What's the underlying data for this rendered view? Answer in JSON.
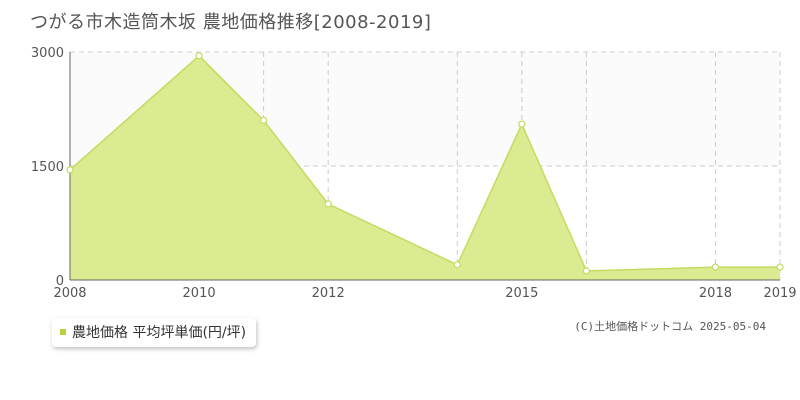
{
  "header": {
    "title": "つがる市木造筒木坂 農地価格推移[2008-2019]"
  },
  "chart_data": {
    "type": "area",
    "title": "つがる市木造筒木坂 農地価格推移[2008-2019]",
    "x": [
      2008,
      2010,
      2011,
      2012,
      2014,
      2015,
      2016,
      2018,
      2019
    ],
    "series": [
      {
        "name": "農地価格 平均坪単価(円/坪)",
        "values": [
          1450,
          2950,
          2100,
          1000,
          200,
          2050,
          120,
          170,
          170
        ],
        "color": "#dbeb91",
        "line_color": "#c2dc60"
      }
    ],
    "x_ticks": [
      2008,
      2010,
      2012,
      2015,
      2018,
      2019
    ],
    "x_tick_labels": [
      "2008",
      "2010",
      "2012",
      "2015",
      "2018",
      "2019"
    ],
    "x_gridlines": [
      2008,
      2010,
      2011,
      2012,
      2014,
      2015,
      2016,
      2018,
      2019
    ],
    "xlim": [
      2008,
      2019
    ],
    "y_ticks": [
      0,
      1500,
      3000
    ],
    "y_tick_labels": [
      "0",
      "1500",
      "3000"
    ],
    "ylim": [
      0,
      3000
    ],
    "grid": true,
    "legend_position": "bottom-left"
  },
  "legend": {
    "label": "農地価格 平均坪単価(円/坪)",
    "color": "#b5d33c"
  },
  "footer": {
    "copyright": "(C)土地価格ドットコム 2025-05-04"
  }
}
